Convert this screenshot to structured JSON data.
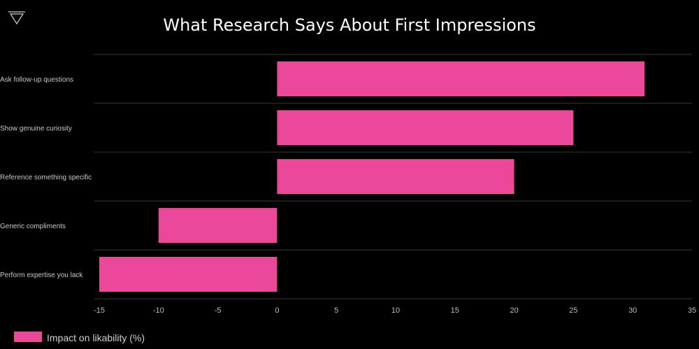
{
  "logo": {
    "icon": "triangle-logo-icon"
  },
  "chart_data": {
    "type": "bar",
    "orientation": "horizontal",
    "title": "What Research Says About First Impressions",
    "categories": [
      "Ask follow-up questions",
      "Show genuine curiosity",
      "Reference something specific",
      "Generic compliments",
      "Perform expertise you lack"
    ],
    "series": [
      {
        "name": "Impact on likability (%)",
        "values": [
          31,
          25,
          20,
          -10,
          -15
        ],
        "color": "#ec4899"
      }
    ],
    "xlim": [
      -15,
      35
    ],
    "xticks": [
      -15,
      -10,
      -5,
      0,
      5,
      10,
      15,
      20,
      25,
      30,
      35
    ],
    "grid": "horizontal",
    "legend_position": "bottom-left",
    "colors": {
      "background": "#000000",
      "bar": "#ec4899",
      "grid": "#3a3a3a",
      "text": "#ffffff"
    }
  }
}
